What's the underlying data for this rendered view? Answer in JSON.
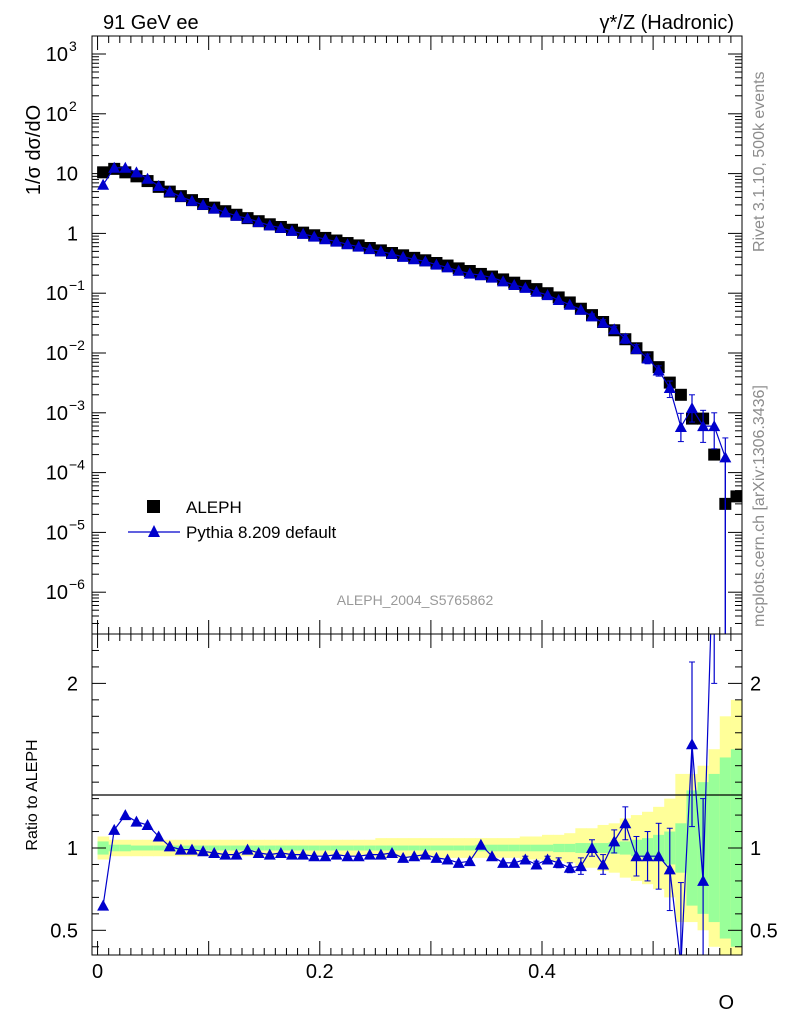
{
  "header": {
    "left_label": "91 GeV ee",
    "right_label": "γ*/Z (Hadronic)"
  },
  "side_labels": {
    "rivet": "Rivet 3.1.10,  500k events",
    "mcplots": "mcplots.cern.ch [arXiv:1306.3436]"
  },
  "reference_id": "ALEPH_2004_S5765862",
  "chart_data": [
    {
      "type": "scatter",
      "panel": "main",
      "ylabel": "1/σ  dσ/dO",
      "xlabel": "O",
      "yscale": "log",
      "xlim": [
        -0.005,
        0.58
      ],
      "ylim": [
        2e-07,
        2000
      ],
      "y_ticks": [
        {
          "exp": "3",
          "text": "10"
        },
        {
          "exp": "2",
          "text": "10"
        },
        {
          "exp": "",
          "text": "10"
        },
        {
          "exp": "",
          "text": "1"
        },
        {
          "exp": "−1",
          "text": "10"
        },
        {
          "exp": "−2",
          "text": "10"
        },
        {
          "exp": "−3",
          "text": "10"
        },
        {
          "exp": "−4",
          "text": "10"
        },
        {
          "exp": "−5",
          "text": "10"
        },
        {
          "exp": "−6",
          "text": "10"
        }
      ],
      "legend_position": "bottom-left",
      "series": [
        {
          "name": "ALEPH",
          "color": "#000000",
          "marker": "square",
          "x": [
            0.005,
            0.015,
            0.025,
            0.035,
            0.045,
            0.055,
            0.065,
            0.075,
            0.085,
            0.095,
            0.105,
            0.115,
            0.125,
            0.135,
            0.145,
            0.155,
            0.165,
            0.175,
            0.185,
            0.195,
            0.205,
            0.215,
            0.225,
            0.235,
            0.245,
            0.255,
            0.265,
            0.275,
            0.285,
            0.295,
            0.305,
            0.315,
            0.325,
            0.335,
            0.345,
            0.355,
            0.365,
            0.375,
            0.385,
            0.395,
            0.405,
            0.415,
            0.425,
            0.435,
            0.445,
            0.455,
            0.465,
            0.475,
            0.485,
            0.495,
            0.505,
            0.515,
            0.525,
            0.535,
            0.545,
            0.555,
            0.565,
            0.575
          ],
          "y": [
            10.5,
            12.0,
            10.5,
            9.0,
            7.5,
            6.0,
            5.0,
            4.2,
            3.6,
            3.1,
            2.7,
            2.35,
            2.05,
            1.8,
            1.6,
            1.42,
            1.28,
            1.15,
            1.03,
            0.93,
            0.84,
            0.76,
            0.69,
            0.63,
            0.57,
            0.52,
            0.47,
            0.43,
            0.39,
            0.355,
            0.32,
            0.29,
            0.26,
            0.235,
            0.21,
            0.19,
            0.17,
            0.15,
            0.133,
            0.117,
            0.1,
            0.085,
            0.07,
            0.055,
            0.043,
            0.033,
            0.024,
            0.017,
            0.012,
            0.0085,
            0.0058,
            0.0032,
            0.002,
            0.0008,
            0.0008,
            0.0002,
            3e-05,
            4e-05
          ]
        },
        {
          "name": "Pythia 8.209 default",
          "color": "#0000cc",
          "marker": "triangle",
          "x": [
            0.005,
            0.015,
            0.025,
            0.035,
            0.045,
            0.055,
            0.065,
            0.075,
            0.085,
            0.095,
            0.105,
            0.115,
            0.125,
            0.135,
            0.145,
            0.155,
            0.165,
            0.175,
            0.185,
            0.195,
            0.205,
            0.215,
            0.225,
            0.235,
            0.245,
            0.255,
            0.265,
            0.275,
            0.285,
            0.295,
            0.305,
            0.315,
            0.325,
            0.335,
            0.345,
            0.355,
            0.365,
            0.375,
            0.385,
            0.395,
            0.405,
            0.415,
            0.425,
            0.435,
            0.445,
            0.455,
            0.465,
            0.475,
            0.485,
            0.495,
            0.505,
            0.515,
            0.525,
            0.535,
            0.545,
            0.555,
            0.565
          ],
          "y": [
            6.5,
            12.5,
            12.5,
            10.5,
            8.2,
            6.2,
            5.0,
            4.1,
            3.5,
            3.0,
            2.6,
            2.25,
            1.97,
            1.78,
            1.55,
            1.36,
            1.24,
            1.1,
            0.98,
            0.885,
            0.8,
            0.73,
            0.658,
            0.6,
            0.545,
            0.5,
            0.455,
            0.405,
            0.37,
            0.34,
            0.3,
            0.27,
            0.237,
            0.212,
            0.2,
            0.182,
            0.158,
            0.137,
            0.123,
            0.106,
            0.093,
            0.077,
            0.064,
            0.053,
            0.041,
            0.032,
            0.025,
            0.0175,
            0.0118,
            0.0081,
            0.0051,
            0.0026,
            0.00058,
            0.0012,
            0.0006,
            0.0006,
            0.00018
          ],
          "yerr_low": [
            0,
            0,
            0,
            0,
            0,
            0,
            0,
            0,
            0,
            0,
            0,
            0,
            0,
            0,
            0,
            0,
            0,
            0,
            0,
            0,
            0,
            0,
            0,
            0,
            0,
            0,
            0,
            0,
            0,
            0,
            0,
            0,
            0,
            0,
            0,
            0,
            0,
            0,
            0,
            0,
            0,
            0,
            0,
            0,
            0.004,
            0.004,
            0.003,
            0.003,
            0.002,
            0.0015,
            0.001,
            0.0008,
            0.00025,
            0.0005,
            0.00028,
            0.00035,
            0.00018
          ],
          "yerr_high": [
            0,
            0,
            0,
            0,
            0,
            0,
            0,
            0,
            0,
            0,
            0,
            0,
            0,
            0,
            0,
            0,
            0,
            0,
            0,
            0,
            0,
            0,
            0,
            0,
            0,
            0,
            0,
            0,
            0,
            0,
            0,
            0,
            0,
            0,
            0,
            0,
            0,
            0,
            0,
            0,
            0,
            0,
            0,
            0,
            0.004,
            0.004,
            0.003,
            0.003,
            0.002,
            0.0015,
            0.001,
            0.0008,
            0.0004,
            0.0008,
            0.0005,
            0.0004,
            0.0002
          ]
        }
      ]
    },
    {
      "type": "line",
      "panel": "ratio",
      "ylabel": "Ratio to ALEPH",
      "xlabel": "O",
      "xlim": [
        -0.005,
        0.58
      ],
      "ylim": [
        0.35,
        2.3
      ],
      "x_ticks": [
        "0",
        "0.2",
        "0.4"
      ],
      "y_ticks": [
        "0.5",
        "1",
        "2"
      ],
      "bands": {
        "x_low": [
          0.0,
          0.01,
          0.02,
          0.03,
          0.04,
          0.05,
          0.06,
          0.07,
          0.08,
          0.09,
          0.1,
          0.11,
          0.12,
          0.13,
          0.14,
          0.15,
          0.16,
          0.17,
          0.18,
          0.19,
          0.2,
          0.21,
          0.22,
          0.23,
          0.24,
          0.25,
          0.26,
          0.27,
          0.28,
          0.29,
          0.3,
          0.31,
          0.32,
          0.33,
          0.34,
          0.35,
          0.36,
          0.37,
          0.38,
          0.39,
          0.4,
          0.41,
          0.42,
          0.43,
          0.44,
          0.45,
          0.46,
          0.47,
          0.48,
          0.49,
          0.5,
          0.51,
          0.52,
          0.53,
          0.54,
          0.55,
          0.56,
          0.57
        ],
        "stat_half": [
          0.04,
          0.02,
          0.02,
          0.015,
          0.015,
          0.015,
          0.015,
          0.015,
          0.015,
          0.015,
          0.015,
          0.015,
          0.015,
          0.015,
          0.015,
          0.015,
          0.015,
          0.015,
          0.015,
          0.015,
          0.015,
          0.015,
          0.015,
          0.015,
          0.015,
          0.015,
          0.015,
          0.015,
          0.015,
          0.015,
          0.015,
          0.015,
          0.015,
          0.015,
          0.02,
          0.02,
          0.02,
          0.02,
          0.02,
          0.02,
          0.02,
          0.025,
          0.025,
          0.03,
          0.03,
          0.03,
          0.035,
          0.04,
          0.05,
          0.06,
          0.08,
          0.1,
          0.15,
          0.35,
          0.4,
          0.45,
          0.55,
          0.6
        ],
        "total_half": [
          0.07,
          0.05,
          0.05,
          0.05,
          0.05,
          0.05,
          0.05,
          0.05,
          0.05,
          0.05,
          0.05,
          0.05,
          0.05,
          0.05,
          0.05,
          0.05,
          0.05,
          0.05,
          0.05,
          0.05,
          0.05,
          0.05,
          0.05,
          0.05,
          0.05,
          0.06,
          0.06,
          0.06,
          0.06,
          0.06,
          0.06,
          0.06,
          0.06,
          0.06,
          0.06,
          0.06,
          0.06,
          0.06,
          0.07,
          0.07,
          0.08,
          0.08,
          0.09,
          0.12,
          0.12,
          0.14,
          0.15,
          0.18,
          0.2,
          0.22,
          0.25,
          0.3,
          0.45,
          0.45,
          0.5,
          0.6,
          0.8,
          0.9
        ]
      },
      "series": [
        {
          "name": "Pythia 8.209 default",
          "color": "#0000cc",
          "marker": "triangle",
          "x": [
            0.005,
            0.015,
            0.025,
            0.035,
            0.045,
            0.055,
            0.065,
            0.075,
            0.085,
            0.095,
            0.105,
            0.115,
            0.125,
            0.135,
            0.145,
            0.155,
            0.165,
            0.175,
            0.185,
            0.195,
            0.205,
            0.215,
            0.225,
            0.235,
            0.245,
            0.255,
            0.265,
            0.275,
            0.285,
            0.295,
            0.305,
            0.315,
            0.325,
            0.335,
            0.345,
            0.355,
            0.365,
            0.375,
            0.385,
            0.395,
            0.405,
            0.415,
            0.425,
            0.435,
            0.445,
            0.455,
            0.465,
            0.475,
            0.485,
            0.495,
            0.505,
            0.515,
            0.525,
            0.535,
            0.545,
            0.555
          ],
          "y": [
            0.65,
            1.11,
            1.2,
            1.16,
            1.14,
            1.07,
            1.01,
            0.99,
            0.99,
            0.98,
            0.97,
            0.96,
            0.96,
            0.99,
            0.97,
            0.96,
            0.97,
            0.96,
            0.96,
            0.95,
            0.95,
            0.96,
            0.95,
            0.95,
            0.96,
            0.96,
            0.97,
            0.94,
            0.95,
            0.96,
            0.94,
            0.93,
            0.91,
            0.92,
            1.02,
            0.95,
            0.91,
            0.91,
            0.93,
            0.9,
            0.93,
            0.91,
            0.88,
            0.89,
            1.0,
            0.9,
            1.04,
            1.15,
            0.95,
            0.95,
            0.95,
            0.87,
            0.29,
            1.63,
            0.8,
            3.0
          ],
          "yerr": [
            0,
            0,
            0,
            0,
            0,
            0,
            0,
            0,
            0,
            0,
            0,
            0,
            0,
            0,
            0,
            0,
            0,
            0,
            0,
            0,
            0,
            0,
            0,
            0,
            0,
            0,
            0,
            0,
            0,
            0,
            0,
            0,
            0,
            0,
            0,
            0,
            0,
            0,
            0.02,
            0.02,
            0.02,
            0.03,
            0.03,
            0.05,
            0.05,
            0.06,
            0.07,
            0.1,
            0.12,
            0.15,
            0.2,
            0.25,
            0.5,
            0.5,
            0.5,
            1.0
          ]
        }
      ]
    }
  ]
}
